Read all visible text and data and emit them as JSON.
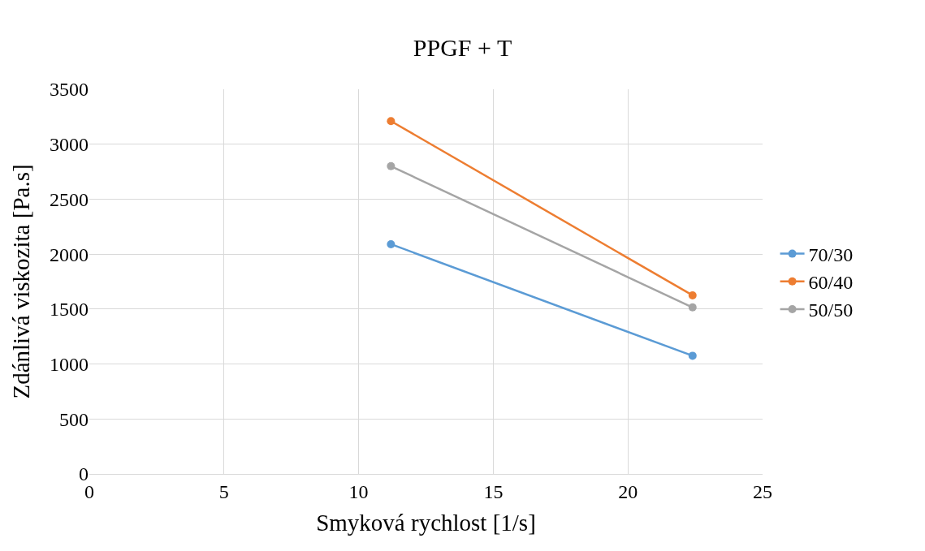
{
  "chart_data": {
    "type": "line",
    "title": "PPGF + T",
    "xlabel": "Smyková rychlost [1/s]",
    "ylabel": "Zdánlivá viskozita [Pa.s]",
    "x": [
      11.2,
      22.4
    ],
    "series": [
      {
        "name": "70/30",
        "color": "#5b9bd5",
        "values": [
          2090,
          1075
        ]
      },
      {
        "name": "60/40",
        "color": "#ed7d31",
        "values": [
          3210,
          1625
        ]
      },
      {
        "name": "50/50",
        "color": "#a5a5a5",
        "values": [
          2800,
          1515
        ]
      }
    ],
    "xlim": [
      0,
      25
    ],
    "xticks": [
      0,
      5,
      10,
      15,
      20,
      25
    ],
    "ylim": [
      0,
      3500
    ],
    "yticks": [
      0,
      500,
      1000,
      1500,
      2000,
      2500,
      3000,
      3500
    ],
    "grid": true,
    "legend": "right",
    "marker": "circle",
    "line_style": "solid"
  }
}
